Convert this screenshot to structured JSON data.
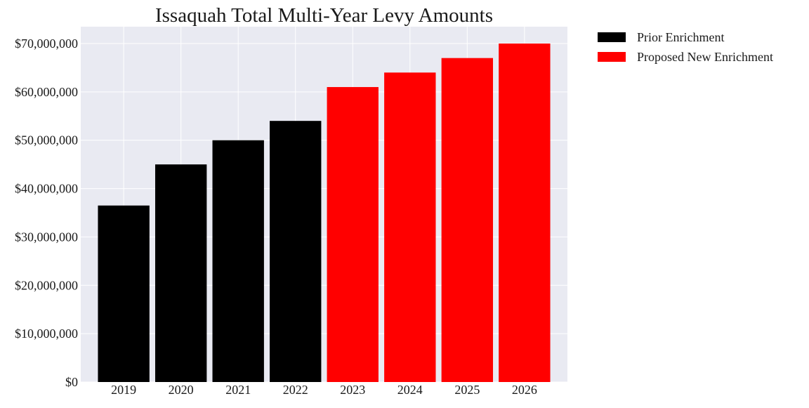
{
  "chart_data": {
    "type": "bar",
    "title": "Issaquah Total Multi-Year Levy Amounts",
    "categories": [
      "2019",
      "2020",
      "2021",
      "2022",
      "2023",
      "2024",
      "2025",
      "2026"
    ],
    "values": [
      36500000,
      45000000,
      50000000,
      54000000,
      61000000,
      64000000,
      67000000,
      70000000
    ],
    "bar_series": [
      "Prior Enrichment",
      "Prior Enrichment",
      "Prior Enrichment",
      "Prior Enrichment",
      "Proposed New Enrichment",
      "Proposed New Enrichment",
      "Proposed New Enrichment",
      "Proposed New Enrichment"
    ],
    "series": [
      {
        "name": "Prior Enrichment",
        "color": "#000000"
      },
      {
        "name": "Proposed New Enrichment",
        "color": "#ff0000"
      }
    ],
    "ylim": [
      0,
      70000000
    ],
    "yticks": [
      0,
      10000000,
      20000000,
      30000000,
      40000000,
      50000000,
      60000000,
      70000000
    ],
    "ytick_labels": [
      "$0",
      "$10,000,000",
      "$20,000,000",
      "$30,000,000",
      "$40,000,000",
      "$50,000,000",
      "$60,000,000",
      "$70,000,000"
    ],
    "xlabel": "",
    "ylabel": "",
    "grid": true,
    "legend_position": "outside-top-right",
    "plot_background": "#e9eaf2",
    "grid_color": "#ffffff"
  }
}
